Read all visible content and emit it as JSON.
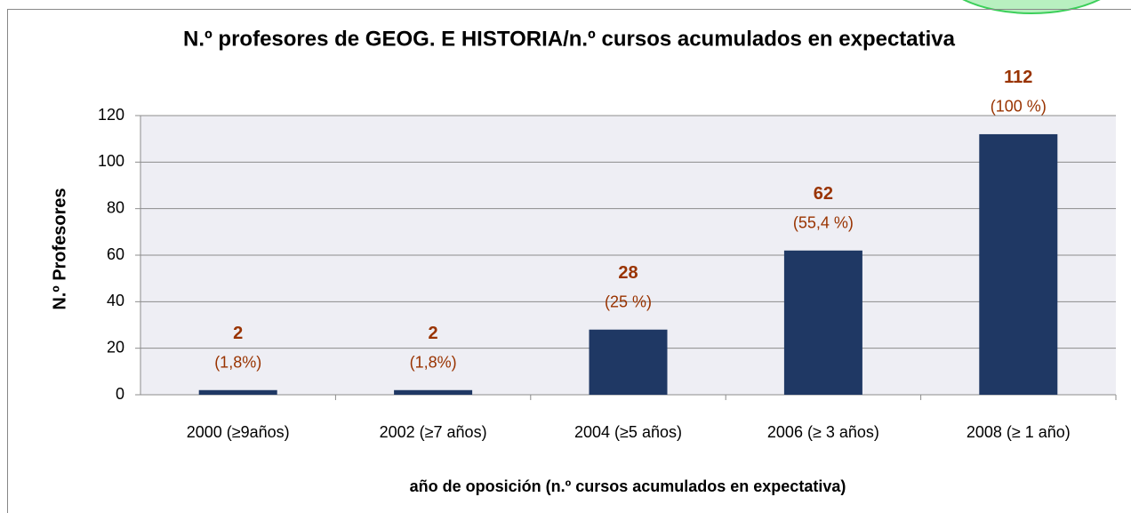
{
  "chart_data": {
    "type": "bar",
    "title": "N.º profesores de GEOG. E HISTORIA/n.º  cursos acumulados en expectativa",
    "y_label": "N.º  Profesores",
    "x_label": "año de oposición (n.º cursos acumulados en expectativa)",
    "categories": [
      "2000 (≥9años)",
      "2002 (≥7 años)",
      "2004 (≥5 años)",
      "2006 (≥ 3 años)",
      "2008 (≥ 1 año)"
    ],
    "values": [
      2,
      2,
      28,
      62,
      112
    ],
    "annotations": [
      "(1,8%)",
      "(1,8%)",
      "(25 %)",
      "(55,4 %)",
      "(100 %)"
    ],
    "color": "#1f3864",
    "label_color": "#993300",
    "ylim": [
      0,
      120
    ],
    "yticks": [
      0,
      20,
      40,
      60,
      80,
      100,
      120
    ],
    "grid": true
  }
}
